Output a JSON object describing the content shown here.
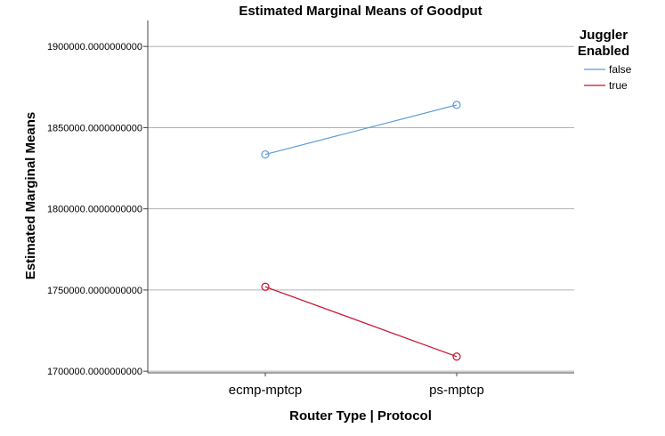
{
  "chart_data": {
    "type": "line",
    "title": "Estimated Marginal Means of Goodput",
    "xlabel": "Router Type | Protocol",
    "ylabel": "Estimated Marginal Means",
    "categories": [
      "ecmp-mptcp",
      "ps-mptcp"
    ],
    "y_ticks": [
      "1900000.0000000000",
      "1850000.0000000000",
      "1800000.0000000000",
      "1750000.0000000000",
      "1700000.0000000000"
    ],
    "ylim": [
      1699000,
      1916000
    ],
    "grid": true,
    "legend": {
      "title_line1": "Juggler",
      "title_line2": "Enabled",
      "placement": "right"
    },
    "series": [
      {
        "name": "false",
        "color": "#5b9bd5",
        "values": [
          1833500,
          1864000
        ]
      },
      {
        "name": "true",
        "color": "#c8102e",
        "values": [
          1752000,
          1709000
        ]
      }
    ]
  }
}
